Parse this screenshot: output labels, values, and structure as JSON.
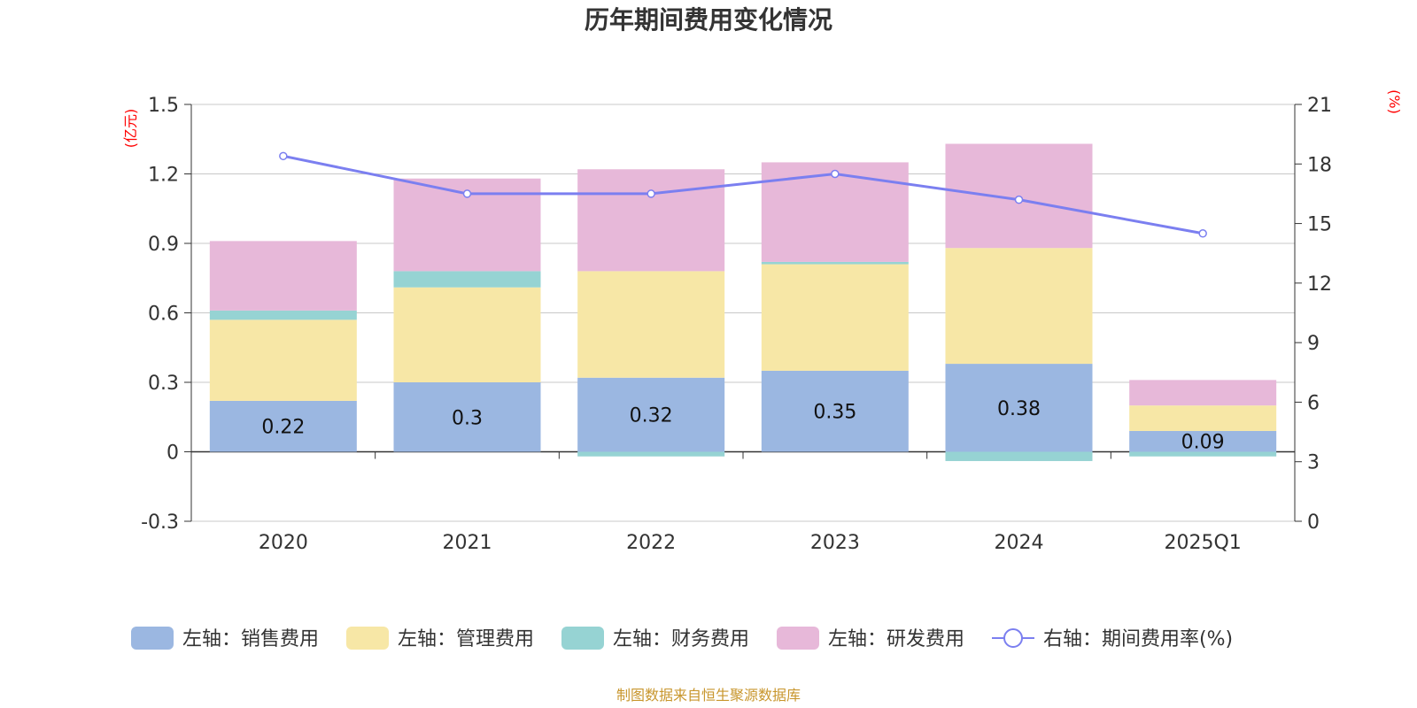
{
  "chart_data": {
    "type": "bar",
    "title": "历年期间费用变化情况",
    "categories": [
      "2020",
      "2021",
      "2022",
      "2023",
      "2024",
      "2025Q1"
    ],
    "left_axis": {
      "unit": "(亿元)",
      "ylim": [
        -0.3,
        1.5
      ],
      "ticks": [
        "1.5",
        "1.2",
        "0.9",
        "0.6",
        "0.3",
        "0",
        "-0.3"
      ]
    },
    "right_axis": {
      "unit": "(%)",
      "ylim": [
        0,
        21
      ],
      "ticks": [
        "21",
        "18",
        "15",
        "12",
        "9",
        "6",
        "3",
        "0"
      ]
    },
    "series": [
      {
        "name": "左轴：销售费用",
        "axis": "left",
        "stack": true,
        "color": "#9bb7e1",
        "values": [
          0.22,
          0.3,
          0.32,
          0.35,
          0.38,
          0.09
        ],
        "labels": [
          "0.22",
          "0.3",
          "0.32",
          "0.35",
          "0.38",
          "0.09"
        ]
      },
      {
        "name": "左轴：管理费用",
        "axis": "left",
        "stack": true,
        "color": "#f7e7a6",
        "values": [
          0.35,
          0.41,
          0.46,
          0.46,
          0.5,
          0.11
        ]
      },
      {
        "name": "左轴：财务费用",
        "axis": "left",
        "stack": true,
        "color": "#96d3d3",
        "values": [
          0.04,
          0.07,
          -0.02,
          0.01,
          -0.04,
          -0.02
        ]
      },
      {
        "name": "左轴：研发费用",
        "axis": "left",
        "stack": true,
        "color": "#e7b8d9",
        "values": [
          0.3,
          0.4,
          0.44,
          0.43,
          0.45,
          0.11
        ]
      },
      {
        "name": "右轴：期间费用率(%)",
        "axis": "right",
        "type": "line",
        "color": "#7b7ff0",
        "values": [
          18.4,
          16.5,
          16.5,
          17.5,
          16.2,
          14.5
        ]
      }
    ],
    "grid": true,
    "legend_position": "bottom"
  },
  "source": "制图数据来自恒生聚源数据库"
}
